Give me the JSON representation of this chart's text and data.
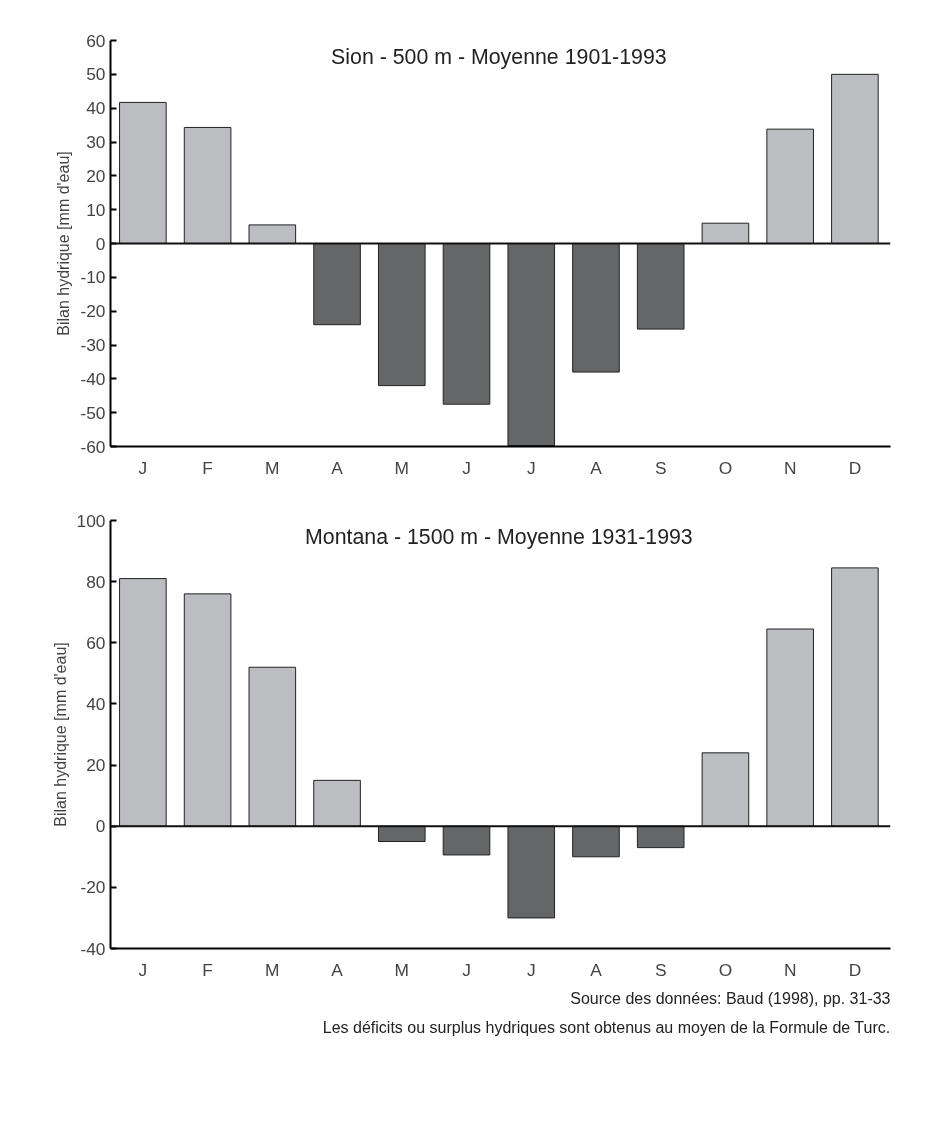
{
  "chart_data": [
    {
      "type": "bar",
      "title": "Sion - 500 m - Moyenne 1901-1993",
      "ylabel": "Bilan hydrique [mm d'eau]",
      "categories": [
        "J",
        "F",
        "M",
        "A",
        "M",
        "J",
        "J",
        "A",
        "S",
        "O",
        "N",
        "D"
      ],
      "values": [
        41.7,
        34.3,
        5.5,
        -24,
        -42,
        -47.5,
        -59.7,
        -38,
        -25.3,
        6,
        33.8,
        50
      ],
      "colors": [
        "#bcbdc1",
        "#bcbdc1",
        "#bcbdc1",
        "#656668",
        "#656668",
        "#656668",
        "#656668",
        "#656668",
        "#656668",
        "#bcbdc1",
        "#bcbdc1",
        "#bcbdc1"
      ],
      "ylim": [
        -60,
        60
      ],
      "yticks": [
        -60,
        -50,
        -40,
        -30,
        -20,
        -10,
        0,
        10,
        20,
        30,
        40,
        50,
        60
      ]
    },
    {
      "type": "bar",
      "title": "Montana - 1500 m - Moyenne 1931-1993",
      "ylabel": "Bilan hydrique [mm d'eau]",
      "categories": [
        "J",
        "F",
        "M",
        "A",
        "M",
        "J",
        "J",
        "A",
        "S",
        "O",
        "N",
        "D"
      ],
      "values": [
        81,
        76,
        52,
        15,
        -5,
        -9.4,
        -30,
        -10,
        -7,
        24,
        64.5,
        84.5
      ],
      "colors": [
        "#bcbdc1",
        "#bcbdc1",
        "#bcbdc1",
        "#bcbdc1",
        "#656668",
        "#656668",
        "#656668",
        "#656668",
        "#656668",
        "#bcbdc1",
        "#bcbdc1",
        "#bcbdc1"
      ],
      "ylim": [
        -40,
        100
      ],
      "yticks": [
        -40,
        -20,
        0,
        20,
        40,
        60,
        80,
        100
      ],
      "annotations": [
        "Source des données: Baud (1998), pp. 31-33",
        "Les déficits ou surplus hydriques sont obtenus au moyen de la Formule de Turc."
      ]
    }
  ]
}
